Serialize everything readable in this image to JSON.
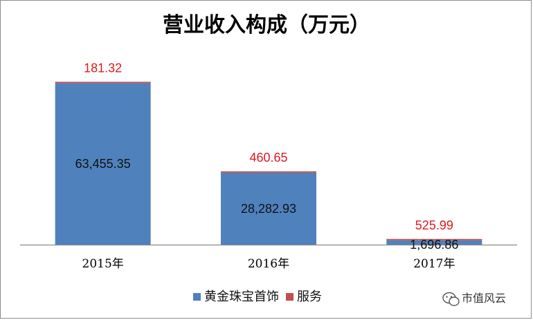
{
  "chart_data": {
    "type": "bar",
    "stacked": true,
    "title": "营业收入构成（万元）",
    "categories": [
      "2015年",
      "2016年",
      "2017年"
    ],
    "series": [
      {
        "name": "黄金珠宝首饰",
        "color": "#4f81bd",
        "values": [
          63455.35,
          28282.93,
          1696.86
        ],
        "labels": [
          "63,455.35",
          "28,282.93",
          "1,696.86"
        ]
      },
      {
        "name": "服务",
        "color": "#c0504d",
        "values": [
          181.32,
          460.65,
          525.99
        ],
        "labels": [
          "181.32",
          "460.65",
          "525.99"
        ]
      }
    ],
    "ylim": [
      0,
      66000
    ],
    "grid": false,
    "legend_position": "bottom",
    "top_label_color": "#e0191b"
  },
  "watermark": {
    "text": "市值风云",
    "icon": "wechat-icon"
  }
}
